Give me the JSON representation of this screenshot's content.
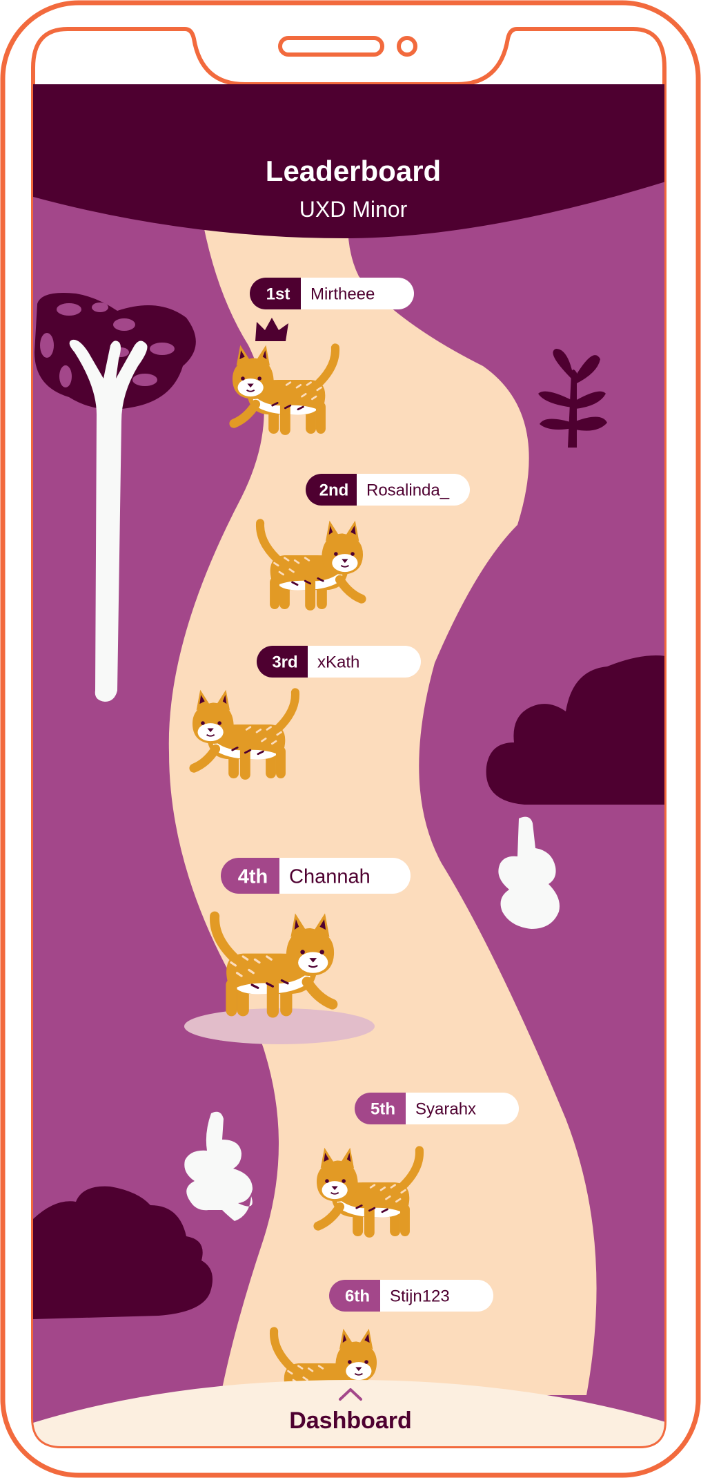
{
  "header": {
    "title": "Leaderboard",
    "subtitle": "UXD Minor"
  },
  "leaderboard": [
    {
      "rank": "1st",
      "name": "Mirtheee"
    },
    {
      "rank": "2nd",
      "name": "Rosalinda_"
    },
    {
      "rank": "3rd",
      "name": "xKath"
    },
    {
      "rank": "4th",
      "name": "Channah"
    },
    {
      "rank": "5th",
      "name": "Syarahx"
    },
    {
      "rank": "6th",
      "name": "Stijn123"
    }
  ],
  "bottom_nav": {
    "label": "Dashboard",
    "icon": "chevron-up-icon"
  },
  "colors": {
    "frame": "#f26a3d",
    "header_bg": "#4e0030",
    "background": "#a3478a",
    "path": "#fcdcbc",
    "dark_foliage": "#4e0030",
    "white_foliage": "#f8f9f8",
    "cat_fur": "#e29a25",
    "badge_top3": "#4e0030",
    "badge_rest": "#a3478a",
    "bottom_bar": "#fcefe0",
    "bottom_text": "#4e0030"
  }
}
